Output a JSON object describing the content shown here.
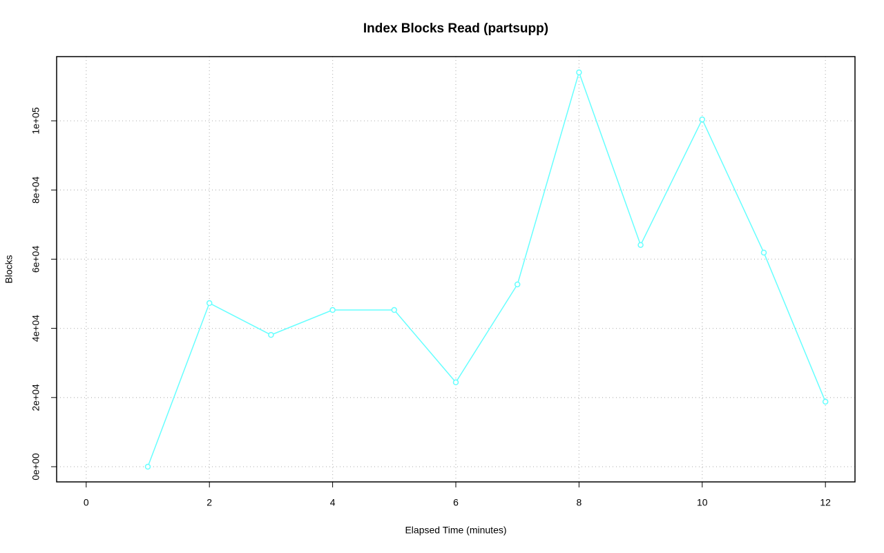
{
  "chart_data": {
    "type": "line",
    "title": "Index Blocks Read (partsupp)",
    "x_label": "Elapsed Time (minutes)",
    "y_label": "Blocks",
    "x": [
      1,
      2,
      3,
      4,
      5,
      6,
      7,
      8,
      9,
      10,
      11,
      12
    ],
    "series": [
      {
        "name": "partsupp",
        "color": "#66ffff",
        "values": [
          0,
          47300,
          38100,
          45300,
          45300,
          24400,
          52700,
          114000,
          64100,
          100400,
          61900,
          18800
        ]
      }
    ],
    "xlim": [
      -0.48,
      12.48
    ],
    "xticks": [
      0,
      2,
      4,
      6,
      8,
      10,
      12
    ],
    "ylim": [
      -4390,
      118560
    ],
    "yticks": [
      {
        "value": 0,
        "label": "0e+00"
      },
      {
        "value": 20000,
        "label": "2e+04"
      },
      {
        "value": 40000,
        "label": "4e+04"
      },
      {
        "value": 60000,
        "label": "6e+04"
      },
      {
        "value": 80000,
        "label": "8e+04"
      },
      {
        "value": 100000,
        "label": "1e+05"
      }
    ],
    "grid": true
  }
}
